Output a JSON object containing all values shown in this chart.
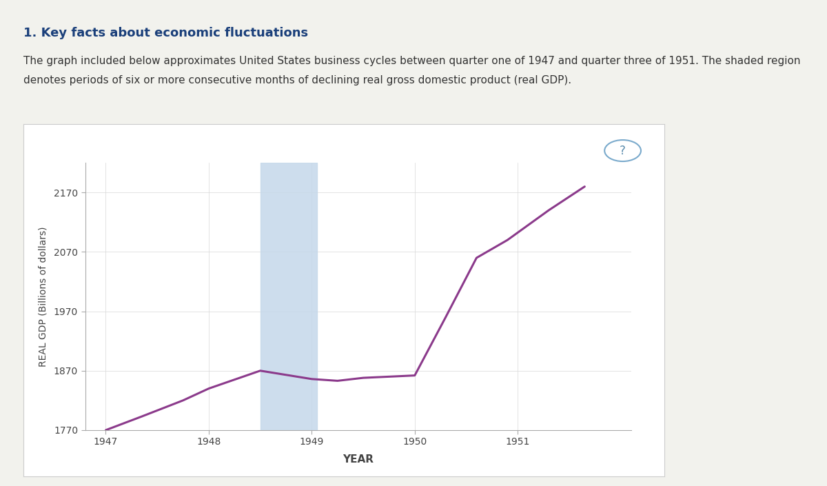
{
  "title_text": "1. Key facts about economic fluctuations",
  "body_text_line1": "The graph included below approximates United States business cycles between quarter one of 1947 and quarter three of 1951. The shaded region",
  "body_text_line2": "denotes periods of six or more consecutive months of declining real gross domestic product (real GDP).",
  "xlabel": "YEAR",
  "ylabel": "REAL GDP (Billions of dollars)",
  "ylim": [
    1770,
    2220
  ],
  "yticks": [
    1770,
    1870,
    1970,
    2070,
    2170
  ],
  "xlim": [
    1946.8,
    1952.1
  ],
  "xticks": [
    1947,
    1948,
    1949,
    1950,
    1951
  ],
  "line_color": "#8B3A8B",
  "line_width": 2.2,
  "shade_xmin": 1948.5,
  "shade_xmax": 1949.05,
  "shade_color": "#c5d8ea",
  "shade_alpha": 0.85,
  "gdp_data": {
    "x": [
      1947.0,
      1947.35,
      1947.75,
      1948.0,
      1948.5,
      1949.0,
      1949.25,
      1949.5,
      1949.75,
      1950.0,
      1950.3,
      1950.6,
      1950.9,
      1951.3,
      1951.65
    ],
    "y": [
      1770,
      1793,
      1820,
      1840,
      1870,
      1856,
      1853,
      1858,
      1860,
      1862,
      1960,
      2060,
      2090,
      2140,
      2180
    ]
  },
  "page_bg": "#f2f2ed",
  "chart_box_bg": "#ffffff",
  "chart_box_border": "#cccccc",
  "tan_bar_color": "#c8b87a",
  "title_color": "#1a3f7a",
  "body_color": "#333333",
  "question_circle_color": "#7aaacc",
  "question_text_color": "#5588aa",
  "black_bar_color": "#111111",
  "grid_color": "#d8d8d8",
  "spine_color": "#aaaaaa",
  "tick_label_color": "#444444"
}
